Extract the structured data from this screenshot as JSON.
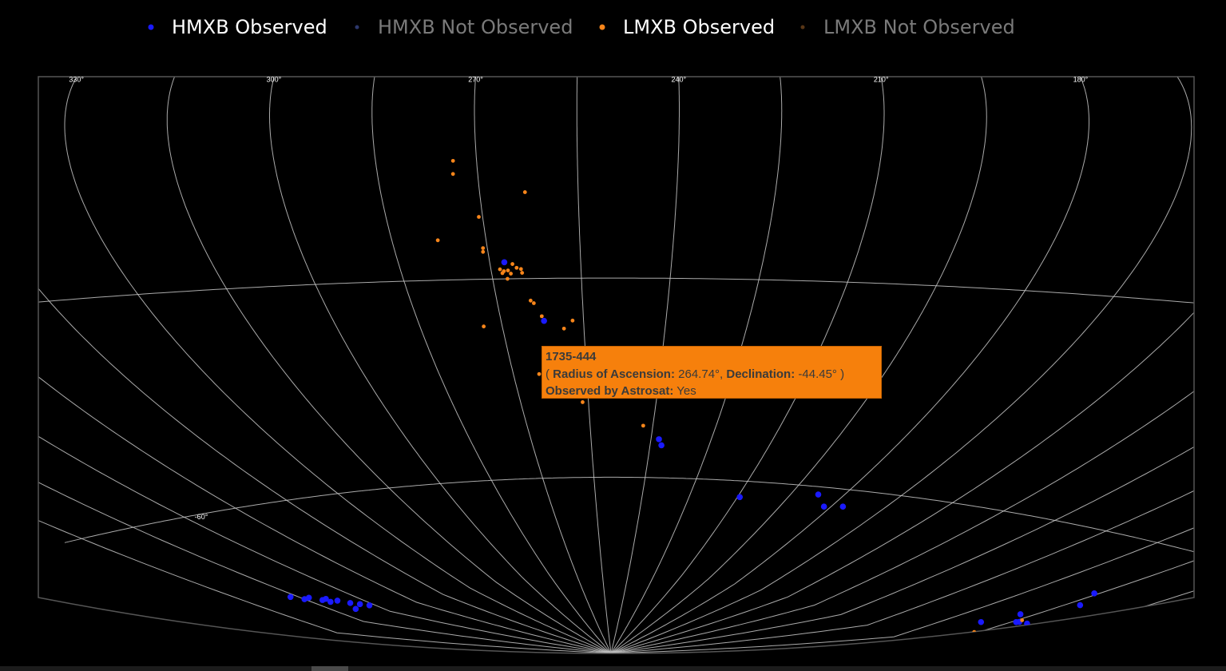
{
  "chart_data": {
    "type": "scattergeo",
    "lonaxis": {
      "dtick": 15
    },
    "lataxis": {
      "range": [
        -90,
        -30
      ],
      "dtick": 30
    },
    "lonticks": [
      {
        "value": 330,
        "label": "330°"
      },
      {
        "value": 300,
        "label": "300°"
      },
      {
        "value": 270,
        "label": "270°"
      },
      {
        "value": 240,
        "label": "240°"
      },
      {
        "value": 210,
        "label": "210°"
      },
      {
        "value": 180,
        "label": "180°"
      }
    ],
    "latticks": [
      {
        "value": -60,
        "label": "-60°"
      }
    ],
    "series": [
      {
        "name": "HMXB Observed",
        "color": "#1a1aff",
        "visible": true,
        "ra": [
          267.6,
          262.2,
          238,
          237.1,
          209.3,
          187.2,
          182,
          176.7,
          76,
          72,
          78,
          71,
          74,
          73.5,
          68,
          81,
          32,
          30,
          28,
          26,
          24.4,
          22.5,
          20.6,
          18.7,
          16.8,
          23.2,
          25.1
        ],
        "dec": [
          -27.4,
          -36.5,
          -54.2,
          -55.1,
          -62.4,
          -61.1,
          -62.7,
          -62.4,
          -66,
          -67.3,
          -69.6,
          -70.1,
          -70.3,
          -70.2,
          -71.3,
          -71.3,
          -70.7,
          -71.3,
          -71.3,
          -71.9,
          -71.9,
          -72.4,
          -73.0,
          -73.4,
          -73.8,
          -73.7,
          -72.3
        ]
      },
      {
        "name": "HMXB Not Observed",
        "color": "#5a6fd8",
        "visible": "legendonly",
        "ra": [],
        "dec": []
      },
      {
        "name": "LMXB Observed",
        "color": "#f7851a",
        "visible": true,
        "ra": [
          273.5,
          273.7,
          263.1,
          270.6,
          277.7,
          270.7,
          270.8,
          268.5,
          267.9,
          267.2,
          266.3,
          265.7,
          265.0,
          264.9,
          266.8,
          268.2,
          267.5,
          264.1,
          263.6,
          273.4,
          262.5,
          257.0,
          258.7,
          264.74,
          256.3,
          242.3,
          74,
          76
        ],
        "dec": [
          -10.1,
          -12.5,
          -15.9,
          -20.0,
          -23.7,
          -25.1,
          -25.7,
          -28.5,
          -28.8,
          -28.7,
          -27.7,
          -28.3,
          -28.5,
          -29.1,
          -29.2,
          -29.1,
          -30.0,
          -33.4,
          -33.8,
          -37.2,
          -35.8,
          -36.5,
          -37.7,
          -44.45,
          -48.7,
          -52.2,
          -70.0,
          -72.2
        ]
      },
      {
        "name": "LMXB Not Observed",
        "color": "#b06b2b",
        "visible": "legendonly",
        "ra": [],
        "dec": []
      }
    ],
    "tooltip": {
      "title": "1735-444",
      "line2": [
        "( ",
        "Radius of Ascension:",
        " 264.74°, ",
        "Declination:",
        " -44.45° )"
      ],
      "line3": [
        "Observed by Astrosat:",
        " Yes"
      ]
    }
  }
}
